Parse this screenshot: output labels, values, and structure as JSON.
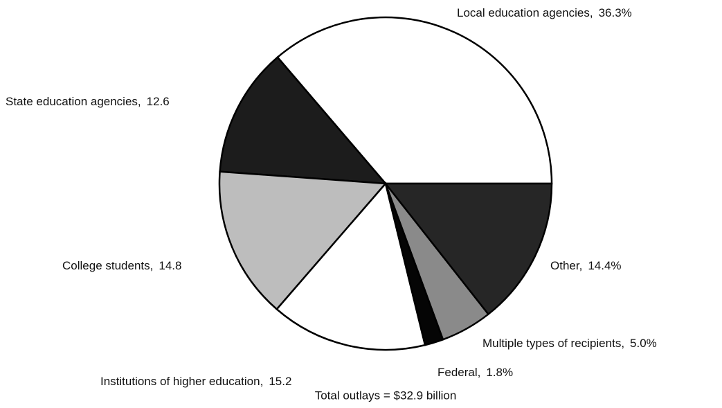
{
  "chart_data": {
    "type": "pie",
    "categories": [
      "Local education agencies,",
      "State education agencies,",
      "College students,",
      "Institutions of higher education,",
      "Federal,",
      "Multiple types of recipients,",
      "Other,"
    ],
    "values": [
      36.3,
      12.6,
      14.8,
      15.2,
      1.8,
      5.0,
      14.4
    ],
    "value_labels": [
      "36.3%",
      "12.6",
      "14.8",
      "15.2",
      "1.8%",
      "5.0%",
      "14.4%"
    ],
    "colors": [
      "#ffffff",
      "#1c1c1c",
      "#bdbdbd",
      "#ffffff",
      "#050505",
      "#8a8a8a",
      "#262626"
    ],
    "note": "Total outlays = $32.9 billion"
  }
}
